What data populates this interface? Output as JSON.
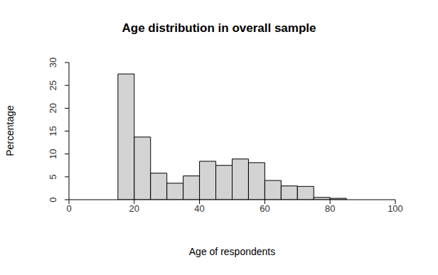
{
  "chart_data": {
    "type": "histogram",
    "title": "Age distribution in overall sample",
    "x_label": "Age of respondents",
    "y_label": "Percentage",
    "bins": [
      15,
      20,
      25,
      30,
      35,
      40,
      45,
      50,
      55,
      60,
      65,
      70,
      75,
      80,
      85
    ],
    "values": [
      27.5,
      13.7,
      5.8,
      3.6,
      5.2,
      8.4,
      7.5,
      8.9,
      8.1,
      4.2,
      3.0,
      2.9,
      0.5,
      0.3
    ],
    "color": "#d3d3d3",
    "xlim": [
      0,
      100
    ],
    "xticks": [
      0,
      20,
      40,
      60,
      80,
      100
    ],
    "ylim": [
      0,
      30
    ],
    "yticks": [
      0,
      5,
      10,
      15,
      20,
      25,
      30
    ]
  }
}
